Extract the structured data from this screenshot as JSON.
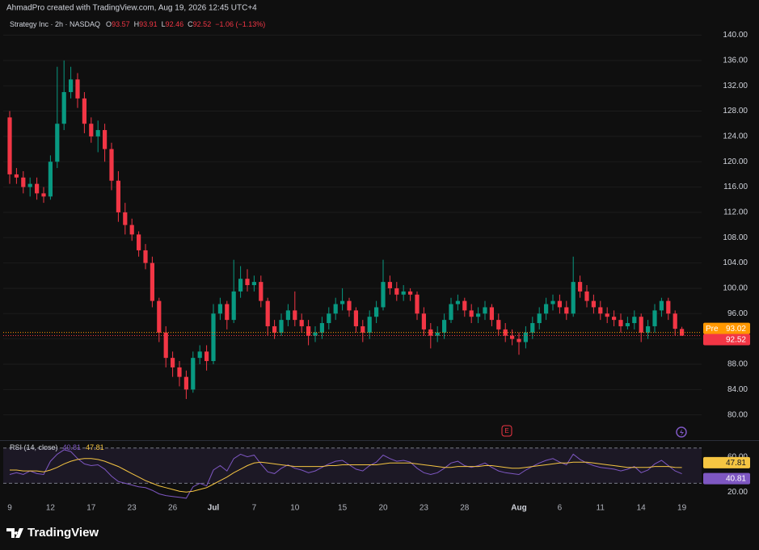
{
  "header": "AhmadPro created with TradingView.com, Aug 19, 2026 12:45 UTC+4",
  "footer": "TradingView",
  "chart_data": [
    {
      "type": "candlestick",
      "title": "Strategy Inc · 2h · NASDAQ",
      "ohlc_prefixes": [
        "O",
        "H",
        "L",
        "C"
      ],
      "change": "−1.06 (−1.13%)",
      "categories": [
        "9",
        null,
        null,
        null,
        null,
        null,
        "12",
        null,
        null,
        null,
        null,
        null,
        "17",
        null,
        null,
        null,
        null,
        null,
        "23",
        null,
        null,
        null,
        null,
        null,
        "26",
        null,
        null,
        null,
        null,
        null,
        "Jul",
        null,
        null,
        null,
        null,
        null,
        "7",
        null,
        null,
        null,
        null,
        null,
        "10",
        null,
        null,
        null,
        null,
        null,
        null,
        "15",
        null,
        null,
        null,
        null,
        null,
        "20",
        null,
        null,
        null,
        null,
        null,
        "23",
        null,
        null,
        null,
        null,
        null,
        "28",
        null,
        null,
        null,
        null,
        null,
        null,
        null,
        "Aug",
        null,
        null,
        null,
        null,
        null,
        "6",
        null,
        null,
        null,
        null,
        null,
        "11",
        null,
        null,
        null,
        null,
        null,
        "14",
        null,
        null,
        null,
        null,
        null,
        "19"
      ],
      "open": [
        127,
        118,
        117.5,
        116,
        116.5,
        115,
        114.5,
        120,
        126,
        131,
        133,
        130,
        126,
        124,
        125,
        122,
        117,
        112,
        110,
        108.5,
        106,
        104,
        98,
        93,
        89,
        87.5,
        86,
        84,
        89,
        90,
        88.5,
        96,
        97.5,
        95,
        99.5,
        101.5,
        100.5,
        101,
        98,
        94,
        93,
        95,
        96.5,
        95,
        94,
        92.5,
        93,
        94.5,
        96,
        97.5,
        98,
        96.5,
        94,
        93,
        95.5,
        97,
        101,
        100,
        99,
        99.5,
        99,
        96,
        93.5,
        92.5,
        93,
        95,
        97.5,
        98,
        96.5,
        95.5,
        96,
        97,
        95,
        93.5,
        92.5,
        92,
        91.5,
        93,
        94.5,
        96,
        97.5,
        98,
        97,
        96,
        101,
        99.5,
        98,
        97,
        96,
        95.5,
        95,
        94,
        94.5,
        95.5,
        93,
        94,
        96.5,
        98,
        96,
        93.57
      ],
      "high": [
        128,
        119,
        118.5,
        117.5,
        117.5,
        116,
        121,
        135,
        136,
        135,
        134,
        131,
        127,
        126.5,
        126,
        123,
        118.5,
        113.5,
        111,
        109,
        107,
        105,
        98.5,
        94,
        90,
        88.5,
        87,
        90,
        91,
        91,
        97.5,
        98.5,
        98,
        104.5,
        103.5,
        103,
        102,
        102,
        98.5,
        95,
        96,
        97.5,
        99.5,
        96,
        95,
        94,
        95.5,
        97,
        98.5,
        100,
        98.5,
        97,
        95,
        96.5,
        98,
        104.5,
        102,
        101,
        100.5,
        100,
        99.5,
        97,
        94.5,
        94,
        96,
        98.5,
        99,
        98.5,
        97.5,
        97,
        98,
        97.5,
        96,
        94.5,
        93.5,
        93,
        94,
        95.5,
        97,
        98.5,
        99,
        99,
        98,
        105,
        102,
        100.5,
        99,
        98,
        97,
        96.5,
        96,
        95.5,
        96.5,
        96,
        95,
        97.5,
        98.5,
        98.5,
        96.5,
        93.91
      ],
      "low": [
        116.5,
        116.5,
        115,
        114.5,
        114,
        113.5,
        114,
        119,
        125,
        130,
        128.5,
        124.5,
        123,
        121.5,
        120,
        115.5,
        110.5,
        108.5,
        107.5,
        105,
        103,
        97,
        91.5,
        87.5,
        86,
        84.5,
        82.5,
        83.5,
        88,
        87,
        88,
        95,
        93.5,
        94.5,
        98.5,
        99.5,
        99.5,
        97,
        92.5,
        92,
        92.5,
        94,
        94,
        93,
        91,
        91.5,
        92,
        93.5,
        95,
        96.5,
        95.5,
        93,
        91.5,
        92,
        94.5,
        96.5,
        99,
        98,
        98,
        98,
        95,
        92.5,
        90.5,
        91.5,
        92,
        94.5,
        96.5,
        95.5,
        94.5,
        94.5,
        95,
        94,
        92.5,
        91.5,
        91,
        89.5,
        90.5,
        92,
        93.5,
        95,
        96.5,
        96,
        95,
        95.5,
        98.5,
        97,
        96,
        95,
        94.5,
        94,
        93,
        93.5,
        93.5,
        91.5,
        92,
        93,
        95.5,
        95,
        92.5,
        92.46
      ],
      "close": [
        118,
        117.5,
        116,
        116.5,
        115,
        114.5,
        120,
        126,
        131,
        133,
        130,
        126,
        124,
        125,
        122,
        117,
        112,
        110,
        108.5,
        106,
        104,
        98,
        93,
        89,
        87.5,
        86,
        84,
        89,
        90,
        88.5,
        96,
        97.5,
        95,
        99.5,
        101.5,
        100.5,
        101,
        98,
        94,
        93,
        95,
        96.5,
        95,
        94,
        92.5,
        93,
        94.5,
        96,
        97.5,
        98,
        96.5,
        94,
        93,
        95.5,
        97,
        101,
        100,
        99,
        99.5,
        99,
        96,
        93.5,
        92.5,
        93,
        95,
        97.5,
        98,
        96.5,
        95.5,
        96,
        97,
        95,
        93.5,
        92.5,
        92,
        91.5,
        93,
        94.5,
        96,
        97.5,
        98,
        97,
        96,
        101,
        99.5,
        98,
        97,
        96,
        95.5,
        95,
        94,
        94.5,
        95.5,
        93,
        94,
        96.5,
        98,
        96,
        93.6,
        92.52
      ],
      "up_color": "#089981",
      "down_color": "#f23645",
      "ylim": [
        76,
        143
      ],
      "yticks": [
        {
          "value": 80,
          "label": "80.00"
        },
        {
          "value": 84,
          "label": "84.00"
        },
        {
          "value": 88,
          "label": "88.00"
        },
        {
          "value": 92,
          "label": "92.00"
        },
        {
          "value": 96,
          "label": "96.00"
        },
        {
          "value": 100,
          "label": "100.00"
        },
        {
          "value": 104,
          "label": "104.00"
        },
        {
          "value": 108,
          "label": "108.00"
        },
        {
          "value": 112,
          "label": "112.00"
        },
        {
          "value": 116,
          "label": "116.00"
        },
        {
          "value": 120,
          "label": "120.00"
        },
        {
          "value": 124,
          "label": "124.00"
        },
        {
          "value": 128,
          "label": "128.00"
        },
        {
          "value": 132,
          "label": "132.00"
        },
        {
          "value": 136,
          "label": "136.00"
        },
        {
          "value": 140,
          "label": "140.00"
        }
      ],
      "grid": true,
      "premarket": {
        "label": "Pre",
        "value": 93.02,
        "color": "#ff9800"
      },
      "earnings_marker": "E"
    },
    {
      "type": "line",
      "title": "RSI (14, close)",
      "series": [
        {
          "color": "#7e57c2",
          "values": [
            40,
            42,
            40,
            44,
            41,
            40,
            55,
            63,
            68,
            66,
            58,
            52,
            50,
            51,
            46,
            38,
            32,
            30,
            28,
            26,
            25,
            22,
            18,
            16,
            15,
            14,
            13,
            26,
            30,
            27,
            45,
            50,
            44,
            58,
            63,
            60,
            62,
            52,
            43,
            41,
            47,
            51,
            47,
            45,
            42,
            44,
            48,
            52,
            55,
            56,
            51,
            46,
            44,
            50,
            54,
            62,
            58,
            55,
            56,
            54,
            47,
            42,
            40,
            42,
            47,
            53,
            55,
            50,
            48,
            50,
            53,
            48,
            44,
            42,
            41,
            40,
            45,
            49,
            53,
            56,
            58,
            54,
            51,
            63,
            57,
            53,
            50,
            48,
            47,
            46,
            44,
            46,
            49,
            42,
            45,
            52,
            56,
            50,
            44,
            40.81
          ]
        },
        {
          "color": "#f5c542",
          "values": [
            45,
            45,
            44,
            44,
            44,
            43,
            45,
            48,
            52,
            55,
            57,
            58,
            58,
            57,
            55,
            52,
            49,
            45,
            41,
            37,
            33,
            30,
            27,
            25,
            23,
            21,
            20,
            21,
            23,
            25,
            29,
            33,
            37,
            42,
            46,
            50,
            53,
            54,
            53,
            52,
            51,
            50,
            49,
            49,
            49,
            49,
            49,
            50,
            50,
            51,
            51,
            51,
            51,
            51,
            51,
            52,
            53,
            53,
            53,
            53,
            52,
            51,
            50,
            49,
            48,
            48,
            49,
            49,
            49,
            49,
            50,
            50,
            49,
            48,
            47,
            47,
            48,
            49,
            50,
            51,
            52,
            53,
            53,
            54,
            54,
            54,
            53,
            52,
            51,
            50,
            49,
            48,
            48,
            48,
            48,
            49,
            49,
            49,
            48,
            47.81
          ]
        }
      ],
      "ylim": [
        12,
        78
      ],
      "yticks": [
        {
          "value": 20,
          "label": "20.00"
        },
        {
          "value": 60,
          "label": "60.00"
        }
      ],
      "bands": [
        30,
        70
      ]
    }
  ]
}
